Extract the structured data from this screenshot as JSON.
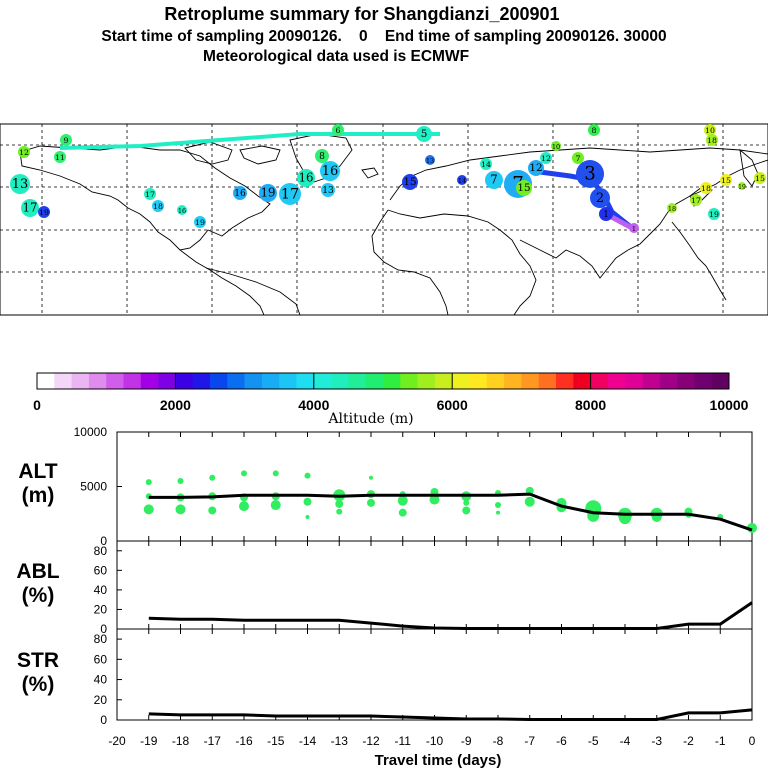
{
  "title": {
    "line1": "Retroplume summary for Shangdianzi_200901",
    "line2": "Start time of sampling 20090126.    0    End time of sampling 20090126. 30000",
    "line3": "Meteorological data used is ECMWF"
  },
  "colorbar": {
    "label": "Altitude (m)",
    "ticks": [
      "0",
      "2000",
      "4000",
      "6000",
      "8000",
      "10000"
    ],
    "colors": [
      "#ffffff",
      "#f4d6f8",
      "#ebb4f3",
      "#e08cee",
      "#d15eea",
      "#c232e6",
      "#a400e6",
      "#8000e6",
      "#3c00e6",
      "#2016ea",
      "#0a46ee",
      "#0a6ef0",
      "#1492f2",
      "#18acf4",
      "#1cc6f4",
      "#20def2",
      "#20ecd8",
      "#20eebc",
      "#20ee98",
      "#20ee70",
      "#30ee40",
      "#70ee20",
      "#a0ee20",
      "#c8ee20",
      "#eef020",
      "#ffe820",
      "#ffd020",
      "#ffb420",
      "#ff9820",
      "#ff7020",
      "#ff3020",
      "#f00020",
      "#f00060",
      "#f00090",
      "#e00098",
      "#c00090",
      "#a00088",
      "#880078",
      "#700070",
      "#600060"
    ]
  },
  "map_track": {
    "labels": [
      "1",
      "2",
      "3",
      "4",
      "5",
      "6",
      "7",
      "8",
      "9",
      "10",
      "11",
      "12",
      "13",
      "14",
      "15",
      "16",
      "17",
      "18",
      "19"
    ]
  },
  "chart_data": [
    {
      "type": "line",
      "panel_label": "ALT",
      "panel_unit": "(m)",
      "x": [
        -19,
        -18,
        -17,
        -16,
        -15,
        -14,
        -13,
        -12,
        -11,
        -10,
        -9,
        -8,
        -7,
        -6,
        -5,
        -4,
        -3,
        -2,
        -1,
        0
      ],
      "values": [
        4000,
        4000,
        4050,
        4200,
        4200,
        4200,
        4100,
        4200,
        4200,
        4200,
        4200,
        4200,
        4300,
        3200,
        2600,
        2450,
        2450,
        2450,
        2000,
        1000
      ],
      "ylim": [
        0,
        10000
      ],
      "yticks": [
        "0",
        "5000",
        "10000"
      ],
      "scatter_x": [
        -19,
        -19,
        -19,
        -18,
        -18,
        -18,
        -17,
        -17,
        -17,
        -16,
        -16,
        -16,
        -15,
        -15,
        -15,
        -14,
        -14,
        -14,
        -13,
        -13,
        -13,
        -12,
        -12,
        -12,
        -11,
        -11,
        -11,
        -10,
        -10,
        -9,
        -9,
        -9,
        -8,
        -8,
        -8,
        -7,
        -7,
        -6,
        -6,
        -5,
        -5,
        -4,
        -4,
        -3,
        -3,
        -2,
        -2,
        -1,
        0
      ],
      "scatter_y": [
        5400,
        4100,
        2900,
        5500,
        4000,
        2900,
        5800,
        4100,
        2800,
        6200,
        4000,
        3200,
        6200,
        4100,
        3300,
        6000,
        3600,
        2200,
        4200,
        3400,
        2700,
        5800,
        4300,
        3500,
        4300,
        3700,
        2600,
        4500,
        3800,
        4100,
        3500,
        2800,
        4400,
        3300,
        2600,
        4600,
        3600,
        3500,
        3100,
        3000,
        2300,
        2400,
        2100,
        2500,
        2200,
        2700,
        2400,
        2200,
        1200
      ],
      "scatter_r": [
        3,
        3,
        5,
        3,
        4,
        5,
        3,
        4,
        4,
        3,
        4,
        5,
        3,
        4,
        5,
        3,
        4,
        2,
        6,
        4,
        3,
        2,
        4,
        4,
        3,
        5,
        4,
        4,
        5,
        5,
        3,
        4,
        3,
        3,
        2,
        4,
        5,
        5,
        5,
        8,
        6,
        7,
        6,
        6,
        5,
        4,
        3,
        3,
        5
      ]
    },
    {
      "type": "line",
      "panel_label": "ABL",
      "panel_unit": "(%)",
      "x": [
        -19,
        -18,
        -17,
        -16,
        -15,
        -14,
        -13,
        -12,
        -11,
        -10,
        -9,
        -8,
        -7,
        -6,
        -5,
        -4,
        -3,
        -2,
        -1,
        0
      ],
      "values": [
        11,
        10,
        10,
        9,
        9,
        9,
        9,
        6,
        3,
        1,
        0.5,
        0.5,
        0.5,
        0.5,
        0.5,
        0.5,
        0.5,
        5,
        5,
        27
      ],
      "ylim": [
        0,
        90
      ],
      "yticks": [
        "0",
        "20",
        "40",
        "60",
        "80"
      ]
    },
    {
      "type": "line",
      "panel_label": "STR",
      "panel_unit": "(%)",
      "x": [
        -19,
        -18,
        -17,
        -16,
        -15,
        -14,
        -13,
        -12,
        -11,
        -10,
        -9,
        -8,
        -7,
        -6,
        -5,
        -4,
        -3,
        -2,
        -1,
        0
      ],
      "values": [
        6,
        5,
        5,
        5,
        4,
        4,
        4,
        4,
        3,
        2,
        1,
        1,
        0.5,
        0.5,
        0.5,
        0.5,
        0.5,
        7,
        7,
        10
      ],
      "ylim": [
        0,
        90
      ],
      "yticks": [
        "0",
        "20",
        "40",
        "60",
        "80"
      ],
      "xlabel": "Travel time (days)",
      "xticks": [
        "-20",
        "-19",
        "-18",
        "-17",
        "-16",
        "-15",
        "-14",
        "-13",
        "-12",
        "-11",
        "-10",
        "-9",
        "-8",
        "-7",
        "-6",
        "-5",
        "-4",
        "-3",
        "-2",
        "-1",
        "0"
      ]
    }
  ]
}
